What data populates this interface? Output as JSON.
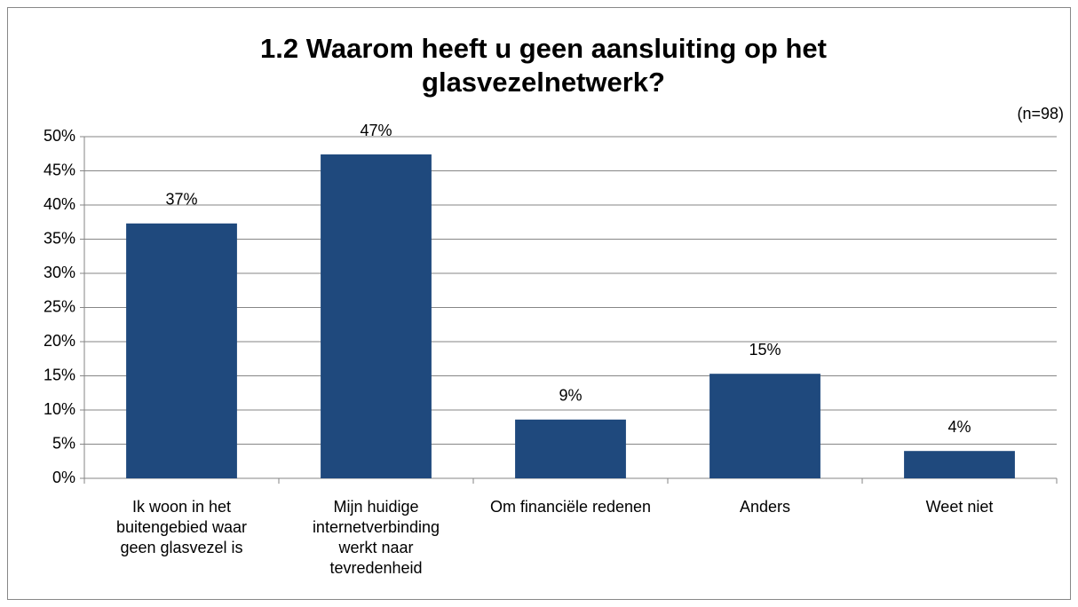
{
  "chart_data": {
    "type": "bar",
    "title": "1.2 Waarom heeft u geen aansluiting op het glasvezelnetwerk?",
    "annotation": "(n=98)",
    "categories": [
      "Ik woon in het buitengebied waar geen glasvezel is",
      "Mijn huidige internetverbinding werkt naar tevredenheid",
      "Om financiële redenen",
      "Anders",
      "Weet niet"
    ],
    "values": [
      37.3,
      47.4,
      8.6,
      15.3,
      4.0
    ],
    "value_labels": [
      "37%",
      "47%",
      "9%",
      "15%",
      "4%"
    ],
    "color": "#1f497d",
    "ylim": [
      0,
      50
    ],
    "yticks": [
      {
        "value": 0,
        "label": "0%"
      },
      {
        "value": 5,
        "label": "5%"
      },
      {
        "value": 10,
        "label": "10%"
      },
      {
        "value": 15,
        "label": "15%"
      },
      {
        "value": 20,
        "label": "20%"
      },
      {
        "value": 25,
        "label": "25%"
      },
      {
        "value": 30,
        "label": "30%"
      },
      {
        "value": 35,
        "label": "35%"
      },
      {
        "value": 40,
        "label": "40%"
      },
      {
        "value": 45,
        "label": "45%"
      },
      {
        "value": 50,
        "label": "50%"
      }
    ],
    "grid": true
  }
}
